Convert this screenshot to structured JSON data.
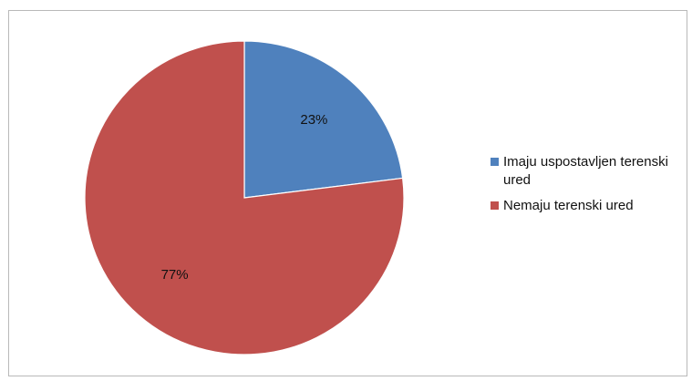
{
  "chart_data": {
    "type": "pie",
    "title": "",
    "slices": [
      {
        "label": "Imaju uspostavljen terenski ured",
        "value": 23,
        "display": "23%",
        "color": "#4f81bd"
      },
      {
        "label": "Nemaju terenski ured",
        "value": 77,
        "display": "77%",
        "color": "#c0504d"
      }
    ],
    "start_angle_deg": 0,
    "direction": "clockwise",
    "legend_placement": "right"
  }
}
